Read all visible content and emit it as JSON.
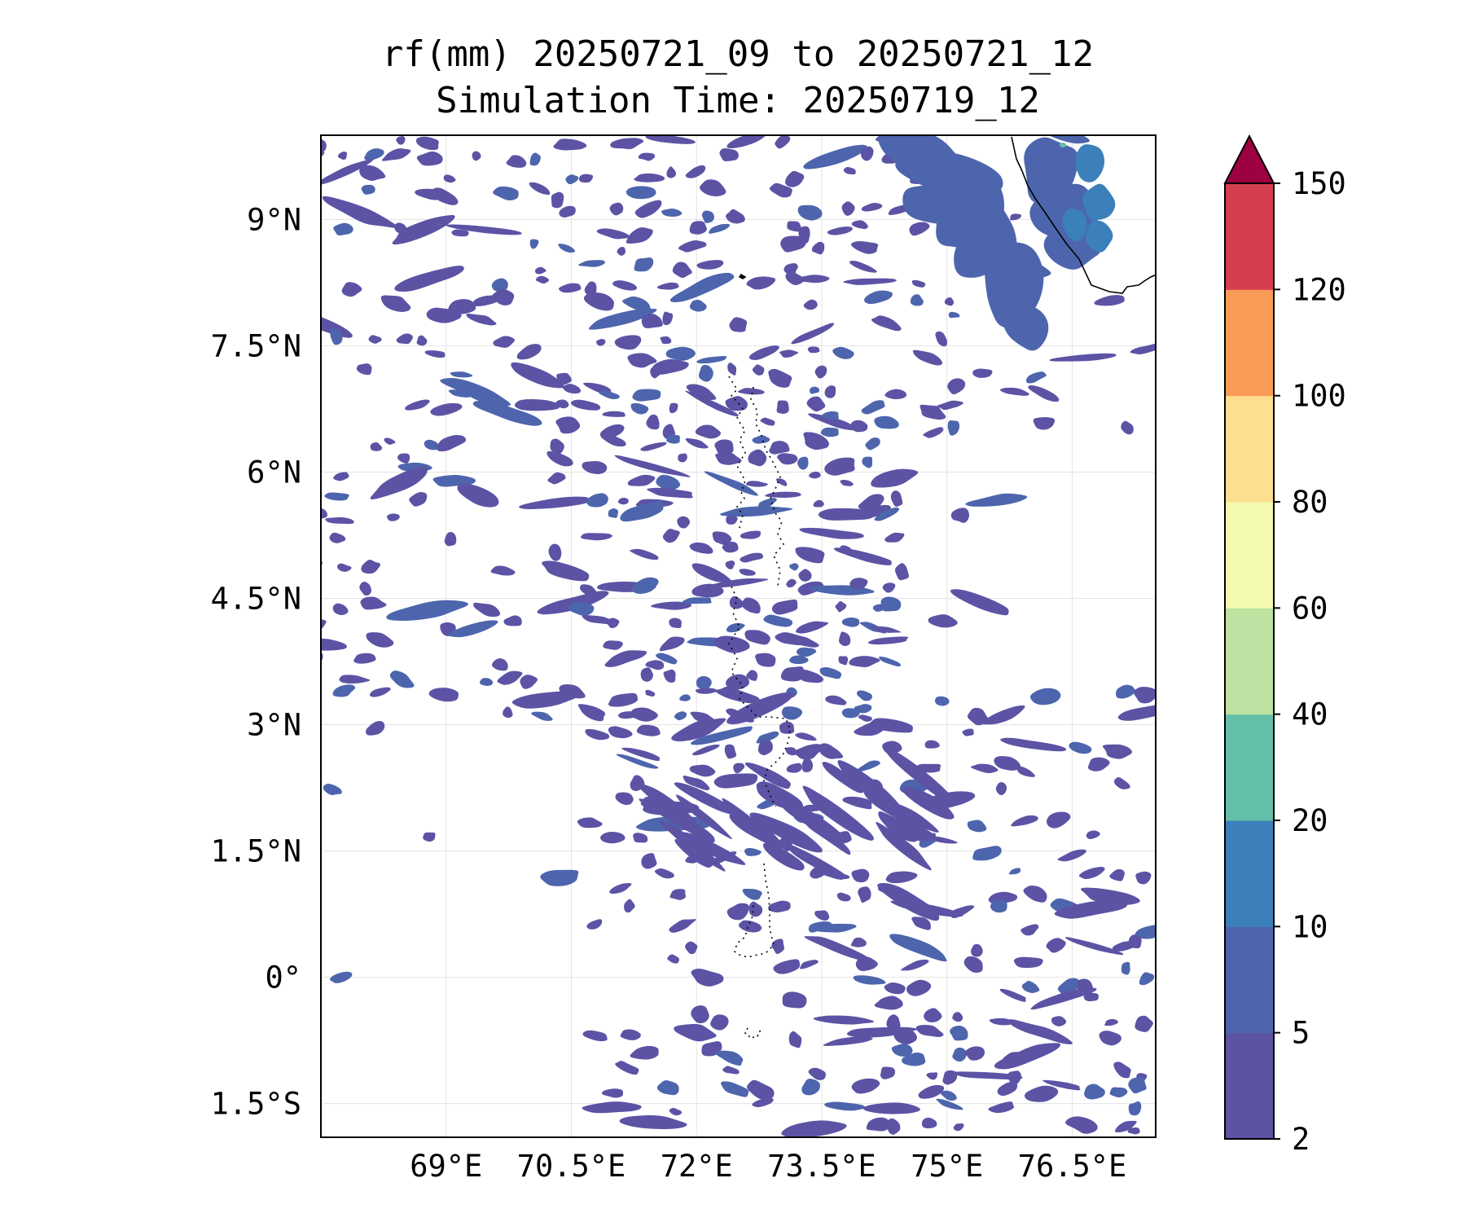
{
  "title": {
    "line1": "rf(mm) 20250721_09 to 20250721_12",
    "line2": "Simulation Time: 20250719_12"
  },
  "map": {
    "lon_range": [
      67.5,
      77.5
    ],
    "lat_range": [
      -1.9,
      10.0
    ],
    "x_ticks": [
      {
        "value": 69,
        "label": "69°E"
      },
      {
        "value": 70.5,
        "label": "70.5°E"
      },
      {
        "value": 72,
        "label": "72°E"
      },
      {
        "value": 73.5,
        "label": "73.5°E"
      },
      {
        "value": 75,
        "label": "75°E"
      },
      {
        "value": 76.5,
        "label": "76.5°E"
      }
    ],
    "y_ticks": [
      {
        "value": 9,
        "label": "9°N"
      },
      {
        "value": 7.5,
        "label": "7.5°N"
      },
      {
        "value": 6,
        "label": "6°N"
      },
      {
        "value": 4.5,
        "label": "4.5°N"
      },
      {
        "value": 3,
        "label": "3°N"
      },
      {
        "value": 1.5,
        "label": "1.5°N"
      },
      {
        "value": 0,
        "label": "0°"
      },
      {
        "value": -1.5,
        "label": "1.5°S"
      }
    ],
    "gridlines": true
  },
  "colorbar": {
    "extend": "max",
    "boundaries": [
      2,
      5,
      10,
      20,
      40,
      60,
      80,
      100,
      120,
      150
    ],
    "labels": [
      "2",
      "5",
      "10",
      "20",
      "40",
      "60",
      "80",
      "100",
      "120",
      "150"
    ],
    "colors": [
      "#5c53a5",
      "#4d65ad",
      "#3b80ba",
      "#64bfa8",
      "#bde2a1",
      "#f3fab0",
      "#fddf8f",
      "#f99b57",
      "#d53e4f",
      "#9e0142"
    ]
  },
  "chart_data": {
    "type": "heatmap",
    "title": "rf(mm) 20250721_09 to 20250721_12\nSimulation Time: 20250719_12",
    "xlabel": "",
    "ylabel": "",
    "xlim": [
      67.5,
      77.5
    ],
    "ylim": [
      -1.9,
      10.0
    ],
    "colorbar_levels": [
      2,
      5,
      10,
      20,
      40,
      60,
      80,
      100,
      120,
      150
    ],
    "regions": [
      {
        "name": "",
        "lon": 76.6,
        "lat": 9.1,
        "value": 12
      },
      {
        "name": "",
        "lon": 75.7,
        "lat": 8.4,
        "value": 6
      },
      {
        "name": "",
        "lon": 74.6,
        "lat": 6.6,
        "value": 8
      },
      {
        "name": "",
        "lon": 73.8,
        "lat": 3.7,
        "value": 8
      },
      {
        "name": "",
        "lon": 72.8,
        "lat": 4.9,
        "value": 5
      },
      {
        "name": "",
        "lon": 74.1,
        "lat": 4.7,
        "value": 6
      },
      {
        "name": "",
        "lon": 77.2,
        "lat": 7.0,
        "value": 5
      }
    ]
  }
}
